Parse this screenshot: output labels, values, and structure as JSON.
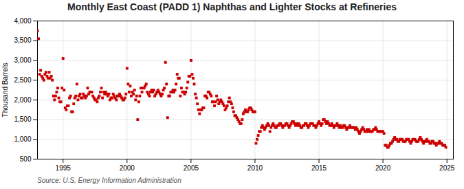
{
  "chart_data": {
    "type": "scatter",
    "title": "Monthly East Coast (PADD 1) Naphthas and Lighter Stocks at Refineries",
    "ylabel": "Thousand Barrels",
    "annotations": [
      "Source: U.S. Energy Information Administration"
    ],
    "color": "#cc0000",
    "marker": "square",
    "grid": true,
    "xlim": [
      1993.0,
      2025.5
    ],
    "xticks": [
      1995,
      2000,
      2005,
      2010,
      2015,
      2020,
      2025
    ],
    "ylim": [
      500,
      4000
    ],
    "yticks": [
      500,
      {
        "value": 1000,
        "label": "1,000"
      },
      {
        "value": 1500,
        "label": "1,500"
      },
      {
        "value": 2000,
        "label": "2,000"
      },
      {
        "value": 2500,
        "label": "2,500"
      },
      {
        "value": 3000,
        "label": "3,000"
      },
      {
        "value": 3500,
        "label": "3,500"
      },
      {
        "value": 4000,
        "label": "4,000"
      }
    ],
    "x": [
      1993.0,
      1993.083,
      1993.167,
      1993.25,
      1993.333,
      1993.417,
      1993.5,
      1993.583,
      1993.667,
      1993.75,
      1993.833,
      1993.917,
      1994.0,
      1994.083,
      1994.167,
      1994.25,
      1994.333,
      1994.417,
      1994.5,
      1994.583,
      1994.667,
      1994.75,
      1994.833,
      1994.917,
      1995.0,
      1995.083,
      1995.167,
      1995.25,
      1995.333,
      1995.417,
      1995.5,
      1995.583,
      1995.667,
      1995.75,
      1995.833,
      1995.917,
      1996.0,
      1996.083,
      1996.167,
      1996.25,
      1996.333,
      1996.417,
      1996.5,
      1996.583,
      1996.667,
      1996.75,
      1996.833,
      1996.917,
      1997.0,
      1997.083,
      1997.167,
      1997.25,
      1997.333,
      1997.417,
      1997.5,
      1997.583,
      1997.667,
      1997.75,
      1997.833,
      1997.917,
      1998.0,
      1998.083,
      1998.167,
      1998.25,
      1998.333,
      1998.417,
      1998.5,
      1998.583,
      1998.667,
      1998.75,
      1998.833,
      1998.917,
      1999.0,
      1999.083,
      1999.167,
      1999.25,
      1999.333,
      1999.417,
      1999.5,
      1999.583,
      1999.667,
      1999.75,
      1999.833,
      1999.917,
      2000.0,
      2000.083,
      2000.167,
      2000.25,
      2000.333,
      2000.417,
      2000.5,
      2000.583,
      2000.667,
      2000.75,
      2000.833,
      2000.917,
      2001.0,
      2001.083,
      2001.167,
      2001.25,
      2001.333,
      2001.417,
      2001.5,
      2001.583,
      2001.667,
      2001.75,
      2001.833,
      2001.917,
      2002.0,
      2002.083,
      2002.167,
      2002.25,
      2002.333,
      2002.417,
      2002.5,
      2002.583,
      2002.667,
      2002.75,
      2002.833,
      2002.917,
      2003.0,
      2003.083,
      2003.167,
      2003.25,
      2003.333,
      2003.417,
      2003.5,
      2003.583,
      2003.667,
      2003.75,
      2003.833,
      2003.917,
      2004.0,
      2004.083,
      2004.167,
      2004.25,
      2004.333,
      2004.417,
      2004.5,
      2004.583,
      2004.667,
      2004.75,
      2004.833,
      2004.917,
      2005.0,
      2005.083,
      2005.167,
      2005.25,
      2005.333,
      2005.417,
      2005.5,
      2005.583,
      2005.667,
      2005.75,
      2005.833,
      2005.917,
      2006.0,
      2006.083,
      2006.167,
      2006.25,
      2006.333,
      2006.417,
      2006.5,
      2006.583,
      2006.667,
      2006.75,
      2006.833,
      2006.917,
      2007.0,
      2007.083,
      2007.167,
      2007.25,
      2007.333,
      2007.417,
      2007.5,
      2007.583,
      2007.667,
      2007.75,
      2007.833,
      2007.917,
      2008.0,
      2008.083,
      2008.167,
      2008.25,
      2008.333,
      2008.417,
      2008.5,
      2008.583,
      2008.667,
      2008.75,
      2008.833,
      2008.917,
      2009.0,
      2009.083,
      2009.167,
      2009.25,
      2009.333,
      2009.417,
      2009.5,
      2009.583,
      2009.667,
      2009.75,
      2009.833,
      2009.917,
      2010.0,
      2010.083,
      2010.167,
      2010.25,
      2010.333,
      2010.417,
      2010.5,
      2010.583,
      2010.667,
      2010.75,
      2010.833,
      2010.917,
      2011.0,
      2011.083,
      2011.167,
      2011.25,
      2011.333,
      2011.417,
      2011.5,
      2011.583,
      2011.667,
      2011.75,
      2011.833,
      2011.917,
      2012.0,
      2012.083,
      2012.167,
      2012.25,
      2012.333,
      2012.417,
      2012.5,
      2012.583,
      2012.667,
      2012.75,
      2012.833,
      2012.917,
      2013.0,
      2013.083,
      2013.167,
      2013.25,
      2013.333,
      2013.417,
      2013.5,
      2013.583,
      2013.667,
      2013.75,
      2013.833,
      2013.917,
      2014.0,
      2014.083,
      2014.167,
      2014.25,
      2014.333,
      2014.417,
      2014.5,
      2014.583,
      2014.667,
      2014.75,
      2014.833,
      2014.917,
      2015.0,
      2015.083,
      2015.167,
      2015.25,
      2015.333,
      2015.417,
      2015.5,
      2015.583,
      2015.667,
      2015.75,
      2015.833,
      2015.917,
      2016.0,
      2016.083,
      2016.167,
      2016.25,
      2016.333,
      2016.417,
      2016.5,
      2016.583,
      2016.667,
      2016.75,
      2016.833,
      2016.917,
      2017.0,
      2017.083,
      2017.167,
      2017.25,
      2017.333,
      2017.417,
      2017.5,
      2017.583,
      2017.667,
      2017.75,
      2017.833,
      2017.917,
      2018.0,
      2018.083,
      2018.167,
      2018.25,
      2018.333,
      2018.417,
      2018.5,
      2018.583,
      2018.667,
      2018.75,
      2018.833,
      2018.917,
      2019.0,
      2019.083,
      2019.167,
      2019.25,
      2019.333,
      2019.417,
      2019.5,
      2019.583,
      2019.667,
      2019.75,
      2019.833,
      2019.917,
      2020.0,
      2020.083,
      2020.167,
      2020.25,
      2020.333,
      2020.417,
      2020.5,
      2020.583,
      2020.667,
      2020.75,
      2020.833,
      2020.917,
      2021.0,
      2021.083,
      2021.167,
      2021.25,
      2021.333,
      2021.417,
      2021.5,
      2021.583,
      2021.667,
      2021.75,
      2021.833,
      2021.917,
      2022.0,
      2022.083,
      2022.167,
      2022.25,
      2022.333,
      2022.417,
      2022.5,
      2022.583,
      2022.667,
      2022.75,
      2022.833,
      2022.917,
      2023.0,
      2023.083,
      2023.167,
      2023.25,
      2023.333,
      2023.417,
      2023.5,
      2023.583,
      2023.667,
      2023.75,
      2023.833,
      2023.917,
      2024.0,
      2024.083,
      2024.167,
      2024.25,
      2024.333,
      2024.417,
      2024.5,
      2024.583,
      2024.667,
      2024.75,
      2024.833,
      2024.917
    ],
    "values": [
      3750,
      3550,
      2650,
      2750,
      2600,
      2550,
      2500,
      2650,
      2700,
      2600,
      2550,
      2700,
      2550,
      2600,
      2500,
      2100,
      2000,
      2100,
      2200,
      2300,
      2050,
      1950,
      1950,
      2300,
      3050,
      2250,
      1800,
      1750,
      1850,
      1850,
      2050,
      2100,
      1700,
      1700,
      1900,
      2050,
      2100,
      2400,
      2000,
      2100,
      2150,
      2050,
      2050,
      2150,
      2100,
      2050,
      2100,
      2300,
      2150,
      2200,
      2200,
      2200,
      2100,
      2050,
      2000,
      2000,
      1950,
      2050,
      2100,
      2200,
      2300,
      2050,
      2200,
      2150,
      2200,
      2150,
      2100,
      2150,
      2000,
      2050,
      2050,
      2150,
      2100,
      2050,
      2000,
      2100,
      2100,
      2150,
      2100,
      2050,
      2000,
      2000,
      2050,
      2150,
      2800,
      2400,
      2200,
      2350,
      2100,
      2200,
      2150,
      2250,
      2000,
      2100,
      1500,
      1950,
      2100,
      2300,
      2200,
      2300,
      2300,
      2350,
      2400,
      2200,
      2150,
      2100,
      2200,
      2250,
      2200,
      2250,
      2100,
      2150,
      2200,
      2250,
      2200,
      2150,
      2100,
      2150,
      2250,
      2300,
      2950,
      2400,
      1550,
      2100,
      2100,
      2200,
      2200,
      2250,
      2200,
      2250,
      2400,
      2650,
      2550,
      2550,
      2100,
      2300,
      2200,
      2200,
      2150,
      2200,
      2300,
      2450,
      2600,
      2600,
      3000,
      2650,
      2550,
      2400,
      2150,
      2050,
      1900,
      1750,
      1650,
      1750,
      1750,
      1800,
      1800,
      2100,
      2100,
      2050,
      2200,
      2200,
      2150,
      2100,
      1950,
      1950,
      1850,
      1950,
      2100,
      2000,
      1900,
      1950,
      2000,
      1950,
      1900,
      1850,
      1750,
      1800,
      1850,
      1950,
      2050,
      1950,
      1900,
      1800,
      1700,
      1600,
      1600,
      1550,
      1500,
      1450,
      1400,
      1400,
      1500,
      1650,
      1700,
      1750,
      1700,
      1700,
      1750,
      1800,
      1800,
      1750,
      1700,
      1700,
      1700,
      900,
      1000,
      1100,
      1200,
      1200,
      1300,
      1350,
      1300,
      1250,
      1300,
      1350,
      1400,
      1350,
      1200,
      1300,
      1350,
      1400,
      1350,
      1300,
      1300,
      1350,
      1350,
      1400,
      1400,
      1350,
      1300,
      1350,
      1350,
      1400,
      1400,
      1350,
      1300,
      1350,
      1400,
      1450,
      1450,
      1400,
      1350,
      1400,
      1350,
      1400,
      1350,
      1300,
      1300,
      1350,
      1350,
      1400,
      1400,
      1350,
      1300,
      1350,
      1400,
      1400,
      1400,
      1350,
      1350,
      1300,
      1350,
      1400,
      1450,
      1400,
      1350,
      1400,
      1500,
      1500,
      1450,
      1400,
      1450,
      1400,
      1350,
      1350,
      1400,
      1350,
      1300,
      1350,
      1350,
      1400,
      1350,
      1300,
      1350,
      1300,
      1300,
      1350,
      1350,
      1300,
      1250,
      1300,
      1300,
      1350,
      1300,
      1300,
      1300,
      1300,
      1250,
      1300,
      1250,
      1200,
      1150,
      1200,
      1250,
      1300,
      1250,
      1200,
      1200,
      1250,
      1200,
      1250,
      1200,
      1200,
      1200,
      1250,
      1250,
      1300,
      1250,
      1200,
      1200,
      1200,
      1200,
      1200,
      1200,
      1150,
      850,
      850,
      800,
      800,
      850,
      900,
      900,
      950,
      1000,
      1050,
      1000,
      1000,
      950,
      950,
      1000,
      1000,
      1000,
      950,
      950,
      950,
      1000,
      1000,
      1000,
      950,
      900,
      950,
      1000,
      1000,
      1000,
      950,
      950,
      950,
      1000,
      1050,
      1000,
      950,
      900,
      950,
      950,
      1000,
      950,
      950,
      900,
      900,
      950,
      950,
      900,
      900,
      850,
      900,
      900,
      950,
      900,
      900,
      850,
      850,
      850,
      800
    ]
  }
}
